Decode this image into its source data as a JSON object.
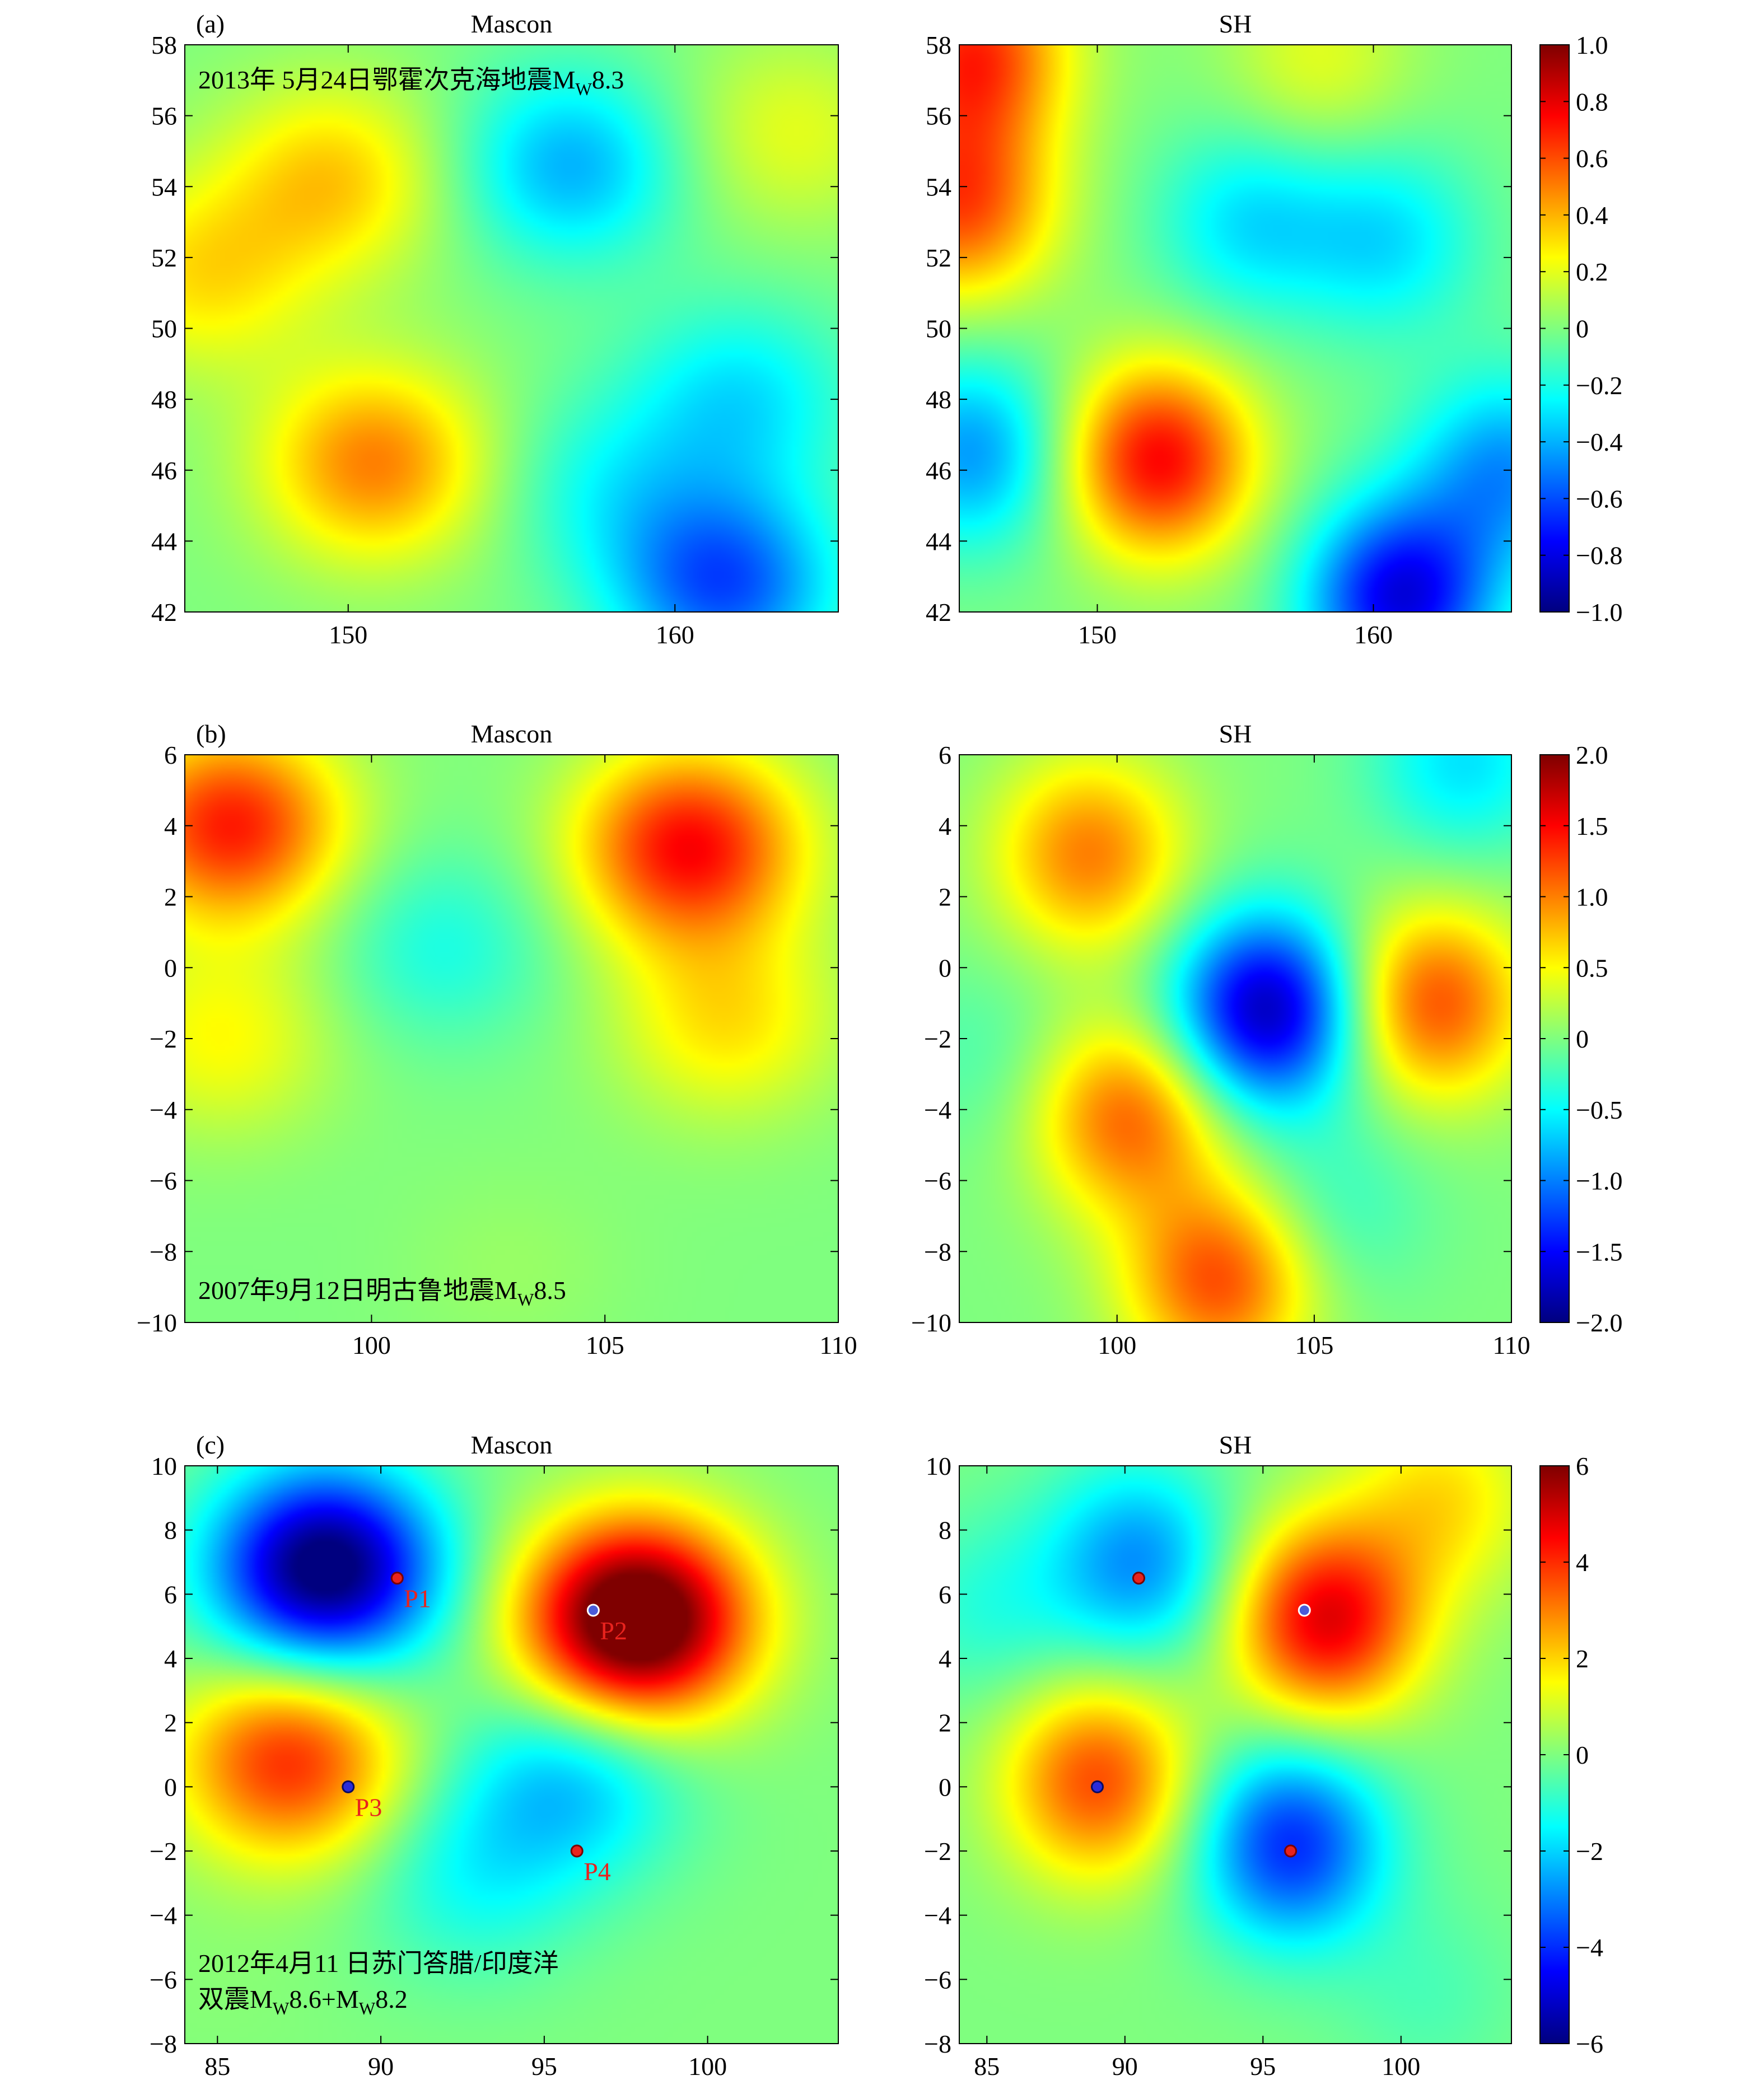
{
  "figure": {
    "rows": [
      {
        "panel_letter": "(a)",
        "cbar_ticks": [
          "1.0",
          "0.8",
          "0.6",
          "0.4",
          "0.2",
          "0",
          "−0.2",
          "−0.4",
          "−0.6",
          "−0.8",
          "−1.0"
        ],
        "colorbar_range": [
          -1.0,
          1.0
        ]
      },
      {
        "panel_letter": "(b)",
        "cbar_ticks": [
          "2.0",
          "1.5",
          "1.0",
          "0.5",
          "0",
          "−0.5",
          "−1.0",
          "−1.5",
          "−2.0"
        ],
        "colorbar_range": [
          -2.0,
          2.0
        ]
      },
      {
        "panel_letter": "(c)",
        "cbar_ticks": [
          "6",
          "4",
          "2",
          "0",
          "−2",
          "−4",
          "−6"
        ],
        "colorbar_range": [
          -6,
          6
        ]
      }
    ]
  },
  "colors": {
    "jet": [
      "#00007f",
      "#0000ff",
      "#007fff",
      "#00ffff",
      "#7fff7f",
      "#ffff00",
      "#ff7f00",
      "#ff0000",
      "#7f0000"
    ]
  },
  "chart_data": [
    {
      "type": "heatmap",
      "title": "Mascon",
      "annotation": "2013年 5月24日鄂霍次克海地震M",
      "annotation_sub": "W",
      "annotation_tail": "8.3",
      "xlim": [
        145,
        165
      ],
      "ylim": [
        42,
        58
      ],
      "xticks": [
        "150",
        "160"
      ],
      "yticks": [
        "58",
        "56",
        "54",
        "52",
        "50",
        "48",
        "46",
        "44",
        "42"
      ],
      "value_range": [
        -1.0,
        1.0
      ],
      "features": [
        {
          "x": 150.8,
          "y": 46.2,
          "value": 0.5
        },
        {
          "x": 156.8,
          "y": 54.6,
          "value": -0.4
        },
        {
          "x": 161.5,
          "y": 42.8,
          "value": -0.6
        },
        {
          "x": 162.0,
          "y": 48.0,
          "value": -0.3
        },
        {
          "x": 145.5,
          "y": 51.5,
          "value": 0.3
        },
        {
          "x": 149.5,
          "y": 54.2,
          "value": 0.35
        },
        {
          "x": 163.5,
          "y": 55.5,
          "value": 0.2
        },
        {
          "x": 158.0,
          "y": 45.5,
          "value": -0.2
        }
      ]
    },
    {
      "type": "heatmap",
      "title": "SH",
      "xlim": [
        145,
        165
      ],
      "ylim": [
        42,
        58
      ],
      "xticks": [
        "150",
        "160"
      ],
      "yticks": [
        "58",
        "56",
        "54",
        "52",
        "50",
        "48",
        "46",
        "44",
        "42"
      ],
      "value_range": [
        -1.0,
        1.0
      ],
      "features": [
        {
          "x": 152.2,
          "y": 46.3,
          "value": 0.75
        },
        {
          "x": 145.0,
          "y": 53.5,
          "value": 0.6
        },
        {
          "x": 145.5,
          "y": 57.8,
          "value": 0.65
        },
        {
          "x": 161.0,
          "y": 42.4,
          "value": -0.8
        },
        {
          "x": 145.5,
          "y": 46.5,
          "value": -0.45
        },
        {
          "x": 164.8,
          "y": 46.0,
          "value": -0.45
        },
        {
          "x": 155.5,
          "y": 53.0,
          "value": -0.3
        },
        {
          "x": 160.5,
          "y": 52.5,
          "value": -0.3
        },
        {
          "x": 158.0,
          "y": 57.5,
          "value": 0.2
        }
      ]
    },
    {
      "type": "heatmap",
      "title": "Mascon",
      "annotation": "2007年9月12日明古鲁地震M",
      "annotation_sub": "W",
      "annotation_tail": "8.5",
      "xlim": [
        96,
        110
      ],
      "ylim": [
        -10,
        6
      ],
      "xticks": [
        "100",
        "105",
        "110"
      ],
      "yticks": [
        "6",
        "4",
        "2",
        "0",
        "−2",
        "−4",
        "−6",
        "−8",
        "−10"
      ],
      "value_range": [
        -2.0,
        2.0
      ],
      "features": [
        {
          "x": 97.0,
          "y": 4.0,
          "value": 1.4
        },
        {
          "x": 106.8,
          "y": 3.4,
          "value": 1.5
        },
        {
          "x": 107.6,
          "y": -1.5,
          "value": 0.6
        },
        {
          "x": 96.8,
          "y": -2.0,
          "value": 0.5
        },
        {
          "x": 101.5,
          "y": 0.6,
          "value": -0.4
        },
        {
          "x": 103.0,
          "y": -8.5,
          "value": 0.1
        }
      ]
    },
    {
      "type": "heatmap",
      "title": "SH",
      "xlim": [
        96,
        110
      ],
      "ylim": [
        -10,
        6
      ],
      "xticks": [
        "100",
        "105",
        "110"
      ],
      "yticks": [
        "6",
        "4",
        "2",
        "0",
        "−2",
        "−4",
        "−6",
        "−8",
        "−10"
      ],
      "value_range": [
        -2.0,
        2.0
      ],
      "features": [
        {
          "x": 103.8,
          "y": -1.2,
          "value": -1.8
        },
        {
          "x": 108.0,
          "y": -1.0,
          "value": 1.2
        },
        {
          "x": 100.3,
          "y": -4.2,
          "value": 1.1
        },
        {
          "x": 102.6,
          "y": -8.8,
          "value": 1.2
        },
        {
          "x": 99.3,
          "y": 3.2,
          "value": 1.0
        },
        {
          "x": 108.8,
          "y": 5.8,
          "value": -0.6
        },
        {
          "x": 96.6,
          "y": -2.5,
          "value": -0.2
        },
        {
          "x": 105.5,
          "y": -6.8,
          "value": -0.3
        }
      ]
    },
    {
      "type": "heatmap",
      "title": "Mascon",
      "annotation": "2012年4月11 日苏门答腊/印度洋",
      "annotation2": "双震M",
      "annotation2_sub1": "W",
      "annotation2_mid": "8.6+M",
      "annotation2_sub2": "W",
      "annotation2_tail": "8.2",
      "xlim": [
        84,
        104
      ],
      "ylim": [
        -8,
        10
      ],
      "xticks": [
        "85",
        "90",
        "95",
        "100"
      ],
      "yticks": [
        "10",
        "8",
        "6",
        "4",
        "2",
        "0",
        "−2",
        "−4",
        "−6",
        "−8"
      ],
      "value_range": [
        -6,
        6
      ],
      "features": [
        {
          "x": 88.3,
          "y": 6.8,
          "value": -6.5
        },
        {
          "x": 97.8,
          "y": 5.2,
          "value": 7.5
        },
        {
          "x": 87.2,
          "y": 0.8,
          "value": 4.0
        },
        {
          "x": 95.8,
          "y": 0.2,
          "value": -2.2
        },
        {
          "x": 92.8,
          "y": -2.8,
          "value": -1.3
        },
        {
          "x": 85.0,
          "y": -6.0,
          "value": 0.1
        }
      ],
      "points": [
        {
          "label": "P1",
          "x": 90.5,
          "y": 6.5,
          "marker": "red"
        },
        {
          "label": "P2",
          "x": 96.5,
          "y": 5.5,
          "marker": "blue-white"
        },
        {
          "label": "P3",
          "x": 89.0,
          "y": 0.0,
          "marker": "blue"
        },
        {
          "label": "P4",
          "x": 96.0,
          "y": -2.0,
          "marker": "red"
        }
      ]
    },
    {
      "type": "heatmap",
      "title": "SH",
      "xlim": [
        84,
        104
      ],
      "ylim": [
        -8,
        10
      ],
      "xticks": [
        "85",
        "90",
        "95",
        "100"
      ],
      "yticks": [
        "10",
        "8",
        "6",
        "4",
        "2",
        "0",
        "−2",
        "−4",
        "−6",
        "−8"
      ],
      "value_range": [
        -6,
        6
      ],
      "features": [
        {
          "x": 97.3,
          "y": 5.2,
          "value": 4.8
        },
        {
          "x": 89.0,
          "y": 0.2,
          "value": 3.6
        },
        {
          "x": 96.0,
          "y": -1.8,
          "value": -4.0
        },
        {
          "x": 90.5,
          "y": 7.0,
          "value": -2.8
        },
        {
          "x": 85.0,
          "y": 5.5,
          "value": -1.0
        },
        {
          "x": 101.5,
          "y": 9.0,
          "value": 1.8
        },
        {
          "x": 101.0,
          "y": -6.5,
          "value": -0.6
        }
      ],
      "points": [
        {
          "label": "",
          "x": 90.5,
          "y": 6.5,
          "marker": "red"
        },
        {
          "label": "",
          "x": 96.5,
          "y": 5.5,
          "marker": "blue-white"
        },
        {
          "label": "",
          "x": 89.0,
          "y": 0.0,
          "marker": "blue"
        },
        {
          "label": "",
          "x": 96.0,
          "y": -2.0,
          "marker": "red"
        }
      ]
    }
  ]
}
